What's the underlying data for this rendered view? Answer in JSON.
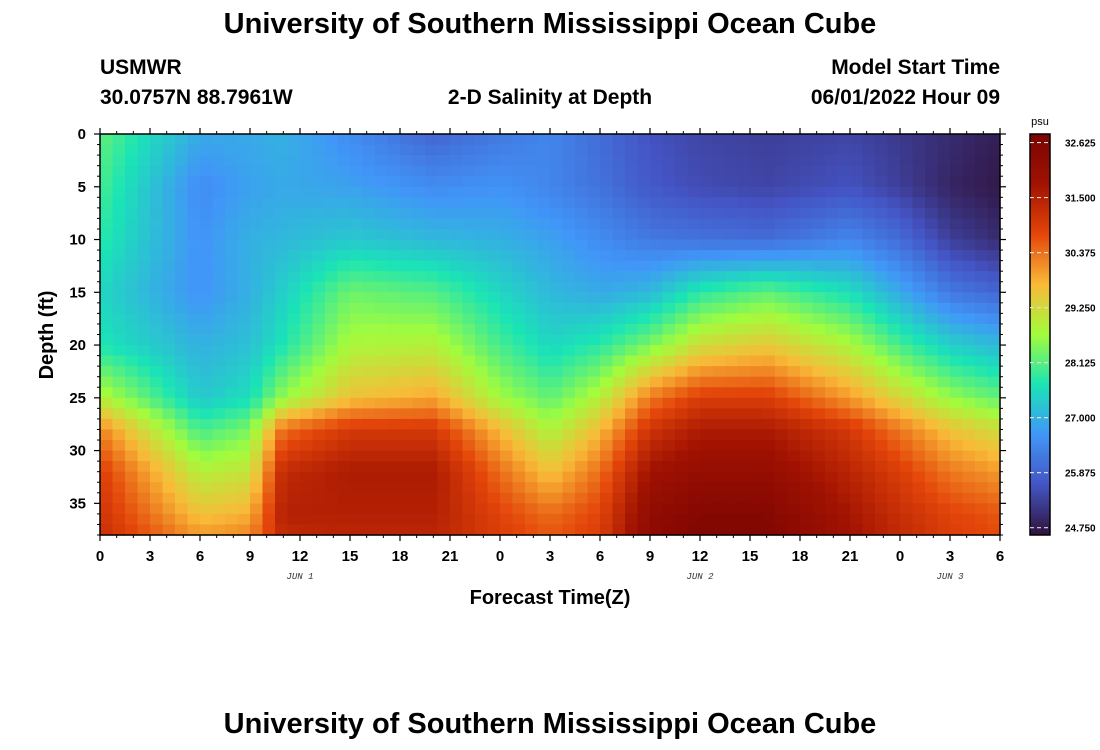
{
  "header": {
    "title": "University of Southern Mississippi Ocean Cube",
    "station": "USMWR",
    "coords": "30.0757N  88.7961W",
    "chart_title": "2-D Salinity at Depth",
    "model_start_label": "Model Start Time",
    "model_start_value": "06/01/2022 Hour 09"
  },
  "footer": {
    "title": "University of Southern Mississippi Ocean Cube"
  },
  "chart_data": {
    "type": "heatmap",
    "title": "2-D Salinity at Depth",
    "xlabel": "Forecast Time(Z)",
    "ylabel": "Depth (ft)",
    "x_ticks": [
      "0",
      "3",
      "6",
      "9",
      "12",
      "15",
      "18",
      "21",
      "0",
      "3",
      "6",
      "9",
      "12",
      "15",
      "18",
      "21",
      "0",
      "3",
      "6"
    ],
    "x_range_hours": [
      0,
      54
    ],
    "y_ticks": [
      "0",
      "5",
      "10",
      "15",
      "20",
      "25",
      "30",
      "35"
    ],
    "y_range_ft": [
      0,
      38
    ],
    "y_inverted": true,
    "date_labels": [
      {
        "text": "JUN 1",
        "hour": 12
      },
      {
        "text": "JUN 2",
        "hour": 36
      },
      {
        "text": "JUN 3",
        "hour": 51
      }
    ],
    "colorbar": {
      "unit": "psu",
      "ticks": [
        "32.625",
        "31.500",
        "30.375",
        "29.250",
        "28.125",
        "27.000",
        "25.875",
        "24.750"
      ],
      "range": [
        24.6,
        32.8
      ],
      "colors": [
        "#30123b",
        "#4454c4",
        "#4196f8",
        "#1ae4b6",
        "#a2fc3c",
        "#f9ba38",
        "#e4460a",
        "#a11201",
        "#7a0403"
      ]
    },
    "hours": [
      0,
      6,
      9,
      11,
      15,
      20,
      24,
      27,
      30,
      33,
      36,
      40,
      45,
      48,
      51,
      54
    ],
    "depths": [
      0,
      5,
      10,
      15,
      20,
      25,
      28,
      32,
      36,
      38
    ],
    "salinity": [
      [
        28.2,
        26.9,
        26.9,
        27.0,
        26.5,
        25.9,
        26.2,
        26.4,
        26.0,
        25.6,
        25.4,
        25.3,
        25.4,
        25.2,
        25.0,
        24.8
      ],
      [
        28.0,
        26.5,
        26.8,
        26.9,
        26.8,
        26.5,
        26.6,
        26.4,
        26.1,
        25.7,
        25.5,
        25.4,
        25.6,
        25.3,
        24.9,
        24.7
      ],
      [
        27.8,
        26.6,
        27.0,
        27.1,
        27.3,
        27.1,
        27.0,
        26.8,
        26.5,
        26.2,
        26.1,
        26.0,
        26.4,
        26.0,
        25.3,
        25.0
      ],
      [
        27.5,
        26.6,
        27.0,
        27.4,
        28.3,
        28.1,
        27.5,
        27.1,
        26.9,
        27.1,
        27.8,
        28.2,
        27.6,
        26.9,
        26.2,
        25.9
      ],
      [
        27.7,
        27.0,
        27.2,
        27.7,
        28.8,
        28.9,
        28.0,
        27.5,
        27.8,
        28.4,
        29.2,
        29.5,
        28.8,
        28.0,
        27.4,
        27.1
      ],
      [
        28.9,
        27.3,
        27.6,
        28.6,
        29.6,
        29.9,
        28.7,
        28.2,
        28.9,
        30.3,
        30.9,
        30.9,
        30.0,
        29.3,
        28.6,
        28.2
      ],
      [
        30.2,
        28.0,
        28.4,
        30.4,
        31.0,
        31.0,
        29.7,
        28.8,
        29.7,
        31.1,
        31.6,
        31.6,
        31.0,
        30.3,
        29.6,
        29.2
      ],
      [
        30.9,
        28.9,
        29.1,
        31.3,
        31.6,
        31.6,
        30.4,
        29.6,
        30.4,
        31.8,
        32.1,
        32.1,
        31.4,
        30.9,
        30.3,
        30.0
      ],
      [
        31.1,
        29.6,
        29.8,
        31.5,
        31.5,
        31.5,
        30.8,
        30.4,
        30.8,
        32.2,
        32.5,
        32.5,
        31.7,
        31.2,
        30.8,
        30.6
      ],
      [
        31.2,
        30.0,
        30.2,
        31.3,
        31.4,
        31.4,
        30.9,
        30.6,
        30.9,
        32.3,
        32.6,
        32.6,
        31.8,
        31.3,
        30.9,
        30.7
      ]
    ]
  }
}
